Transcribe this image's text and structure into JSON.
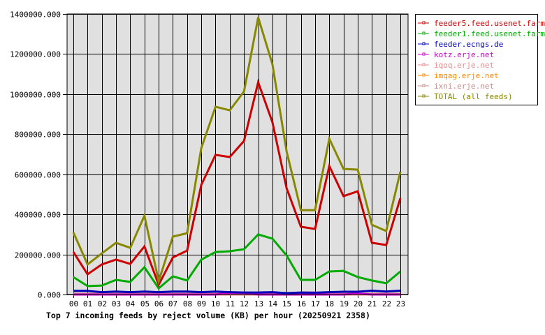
{
  "chart_data": {
    "type": "line",
    "title": "Top 7 incoming feeds by reject volume (KB) per hour (20250921 2358)",
    "xlabel": "",
    "ylabel": "",
    "x": [
      "00",
      "01",
      "02",
      "03",
      "04",
      "05",
      "06",
      "07",
      "08",
      "09",
      "10",
      "11",
      "12",
      "13",
      "14",
      "15",
      "16",
      "17",
      "18",
      "19",
      "20",
      "21",
      "22",
      "23"
    ],
    "yticks": [
      "0.000",
      "200000.000",
      "400000.000",
      "600000.000",
      "800000.000",
      "1000000.000",
      "1200000.000",
      "1400000.000"
    ],
    "ylim": [
      0,
      1400000
    ],
    "grid": true,
    "legend_position": "right",
    "plot_background": "#e0e0e0",
    "series": [
      {
        "name": "feeder5.feed.usenet.farm",
        "color": "#cc0000",
        "values": [
          212000,
          101000,
          150000,
          174000,
          153000,
          240000,
          49000,
          185000,
          219000,
          547000,
          697000,
          686000,
          766000,
          1059000,
          860000,
          530000,
          338000,
          327000,
          641000,
          491000,
          515000,
          258000,
          247000,
          481000
        ]
      },
      {
        "name": "feeder1.feed.usenet.farm",
        "color": "#00aa00",
        "values": [
          87000,
          42000,
          45000,
          73000,
          63000,
          136000,
          31000,
          91000,
          70000,
          174000,
          212000,
          216000,
          226000,
          300000,
          279000,
          195000,
          73000,
          73000,
          115000,
          118000,
          87000,
          70000,
          56000,
          115000
        ]
      },
      {
        "name": "feeder.ecngs.de",
        "color": "#0000bb",
        "values": [
          18000,
          18000,
          12000,
          15000,
          12000,
          15000,
          12000,
          15000,
          15000,
          12000,
          15000,
          12000,
          10000,
          10000,
          12000,
          7000,
          10000,
          9000,
          12000,
          14000,
          14000,
          19000,
          15000,
          19000
        ]
      },
      {
        "name": "kotz.erje.net",
        "color": "#cc00cc",
        "values": [
          0,
          0,
          0,
          0,
          0,
          0,
          0,
          0,
          0,
          0,
          0,
          8000,
          8000,
          0,
          0,
          0,
          0,
          0,
          0,
          0,
          5000,
          0,
          0,
          0
        ]
      },
      {
        "name": "iqoq.erje.net",
        "color": "#ee8888",
        "values": [
          0,
          0,
          0,
          0,
          0,
          0,
          0,
          0,
          0,
          0,
          0,
          0,
          0,
          0,
          0,
          0,
          10000,
          10000,
          0,
          0,
          0,
          0,
          0,
          0
        ]
      },
      {
        "name": "imqag.erje.net",
        "color": "#ff8800",
        "values": [
          0,
          0,
          0,
          0,
          0,
          0,
          0,
          0,
          0,
          0,
          0,
          0,
          0,
          0,
          0,
          0,
          0,
          0,
          0,
          0,
          0,
          0,
          0,
          0
        ]
      },
      {
        "name": "ixni.erje.net",
        "color": "#cc8888",
        "values": [
          4000,
          4000,
          4000,
          4000,
          4000,
          4000,
          4000,
          4000,
          4000,
          4000,
          4000,
          4000,
          4000,
          4000,
          4000,
          4000,
          4000,
          4000,
          4000,
          4000,
          4000,
          4000,
          4000,
          4000
        ]
      },
      {
        "name": "TOTAL (all feeds)",
        "color": "#888800",
        "values": [
          310000,
          150000,
          205000,
          258000,
          233000,
          393000,
          66000,
          289000,
          306000,
          731000,
          937000,
          919000,
          1013000,
          1383000,
          1149000,
          714000,
          421000,
          421000,
          777000,
          627000,
          623000,
          348000,
          317000,
          613000
        ]
      }
    ]
  }
}
